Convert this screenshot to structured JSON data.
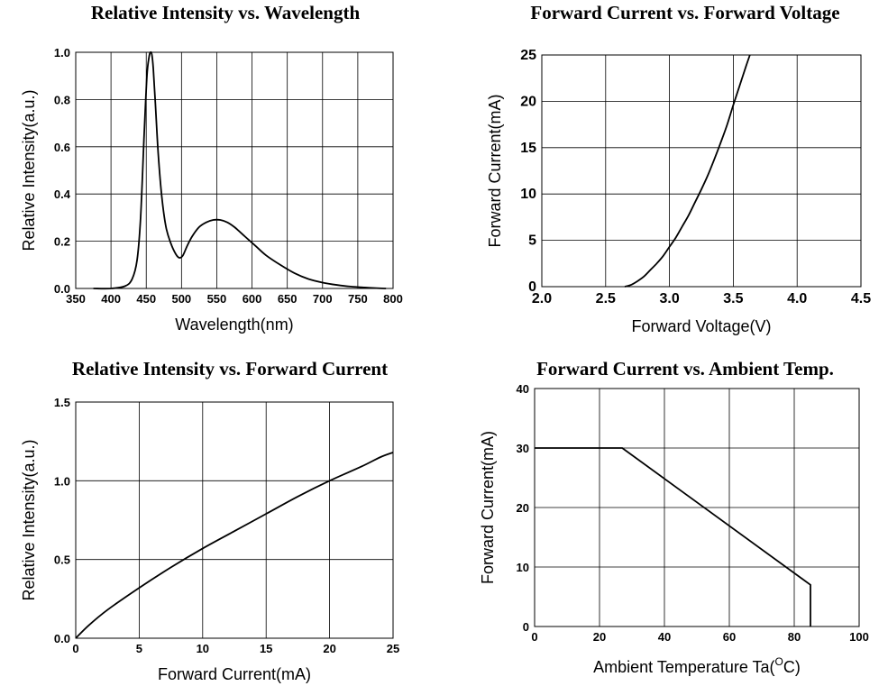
{
  "chart_data": [
    {
      "type": "line",
      "title": "Relative Intensity vs. Wavelength",
      "xlabel": "Wavelength(nm)",
      "ylabel": "Relative Intensity(a.u.)",
      "xlim": [
        350,
        800
      ],
      "ylim": [
        0,
        1.0
      ],
      "xticks": [
        350,
        400,
        450,
        500,
        550,
        600,
        650,
        700,
        750,
        800
      ],
      "xtick_labels": [
        "350",
        "400",
        "450",
        "500",
        "550",
        "600",
        "650",
        "700",
        "750",
        "800"
      ],
      "yticks": [
        0,
        0.2,
        0.4,
        0.6,
        0.8,
        1.0
      ],
      "ytick_labels": [
        "0.0",
        "0.2",
        "0.4",
        "0.6",
        "0.8",
        "1.0"
      ],
      "grid": true,
      "series": [
        {
          "x": [
            375,
            400,
            420,
            430,
            437,
            442,
            447,
            451,
            454,
            456,
            458,
            460,
            463,
            467,
            472,
            478,
            485,
            492,
            497,
            502,
            508,
            515,
            525,
            535,
            545,
            555,
            565,
            575,
            590,
            605,
            620,
            640,
            660,
            680,
            700,
            720,
            740,
            760,
            780,
            790
          ],
          "y": [
            0.0,
            0.0,
            0.01,
            0.04,
            0.12,
            0.3,
            0.65,
            0.9,
            0.98,
            1.0,
            0.99,
            0.93,
            0.78,
            0.57,
            0.39,
            0.26,
            0.19,
            0.145,
            0.13,
            0.14,
            0.18,
            0.22,
            0.26,
            0.28,
            0.29,
            0.29,
            0.28,
            0.26,
            0.22,
            0.18,
            0.14,
            0.1,
            0.065,
            0.04,
            0.025,
            0.015,
            0.008,
            0.004,
            0.001,
            0.0
          ]
        }
      ]
    },
    {
      "type": "line",
      "title": "Forward Current vs. Forward Voltage",
      "xlabel": "Forward Voltage(V)",
      "ylabel": "Forward Current(mA)",
      "xlim": [
        2.0,
        4.5
      ],
      "ylim": [
        0,
        25
      ],
      "xticks": [
        2.0,
        2.5,
        3.0,
        3.5,
        4.0,
        4.5
      ],
      "xtick_labels": [
        "2.0",
        "2.5",
        "3.0",
        "3.5",
        "4.0",
        "4.5"
      ],
      "yticks": [
        0,
        5,
        10,
        15,
        20,
        25
      ],
      "ytick_labels": [
        "0",
        "5",
        "10",
        "15",
        "20",
        "25"
      ],
      "grid": true,
      "series": [
        {
          "x": [
            2.65,
            2.7,
            2.75,
            2.8,
            2.85,
            2.9,
            2.95,
            3.0,
            3.05,
            3.1,
            3.15,
            3.2,
            3.25,
            3.3,
            3.35,
            3.4,
            3.45,
            3.5,
            3.55,
            3.6,
            3.63
          ],
          "y": [
            0.0,
            0.2,
            0.6,
            1.1,
            1.8,
            2.5,
            3.3,
            4.3,
            5.3,
            6.5,
            7.7,
            9.1,
            10.5,
            12.0,
            13.7,
            15.5,
            17.4,
            19.6,
            21.7,
            23.8,
            25.0
          ]
        }
      ]
    },
    {
      "type": "line",
      "title": "Relative Intensity vs. Forward Current",
      "xlabel": "Forward Current(mA)",
      "ylabel": "Relative Intensity(a.u.)",
      "xlim": [
        0,
        25
      ],
      "ylim": [
        0,
        1.5
      ],
      "xticks": [
        0,
        5,
        10,
        15,
        20,
        25
      ],
      "xtick_labels": [
        "0",
        "5",
        "10",
        "15",
        "20",
        "25"
      ],
      "yticks": [
        0,
        0.5,
        1.0,
        1.5
      ],
      "ytick_labels": [
        "0.0",
        "0.5",
        "1.0",
        "1.5"
      ],
      "grid": true,
      "series": [
        {
          "x": [
            0,
            1,
            2.5,
            5,
            7.5,
            10,
            12.5,
            15,
            17.5,
            20,
            22.5,
            24,
            25
          ],
          "y": [
            0.0,
            0.08,
            0.18,
            0.32,
            0.45,
            0.57,
            0.68,
            0.79,
            0.9,
            1.0,
            1.09,
            1.15,
            1.18
          ]
        }
      ]
    },
    {
      "type": "line",
      "title": "Forward Current vs. Ambient Temp.",
      "xlabel": "Ambient Temperature Ta(",
      "xlabel_unit": "O",
      "xlabel_suffix": "C)",
      "ylabel": "Forward Current(mA)",
      "xlim": [
        0,
        100
      ],
      "ylim": [
        0,
        40
      ],
      "xticks": [
        0,
        20,
        40,
        60,
        80,
        100
      ],
      "xtick_labels": [
        "0",
        "20",
        "40",
        "60",
        "80",
        "100"
      ],
      "yticks": [
        0,
        10,
        20,
        30,
        40
      ],
      "ytick_labels": [
        "0",
        "10",
        "20",
        "30",
        "40"
      ],
      "grid": true,
      "series": [
        {
          "x": [
            0,
            27,
            85,
            85
          ],
          "y": [
            30,
            30,
            7,
            0
          ]
        }
      ]
    }
  ]
}
